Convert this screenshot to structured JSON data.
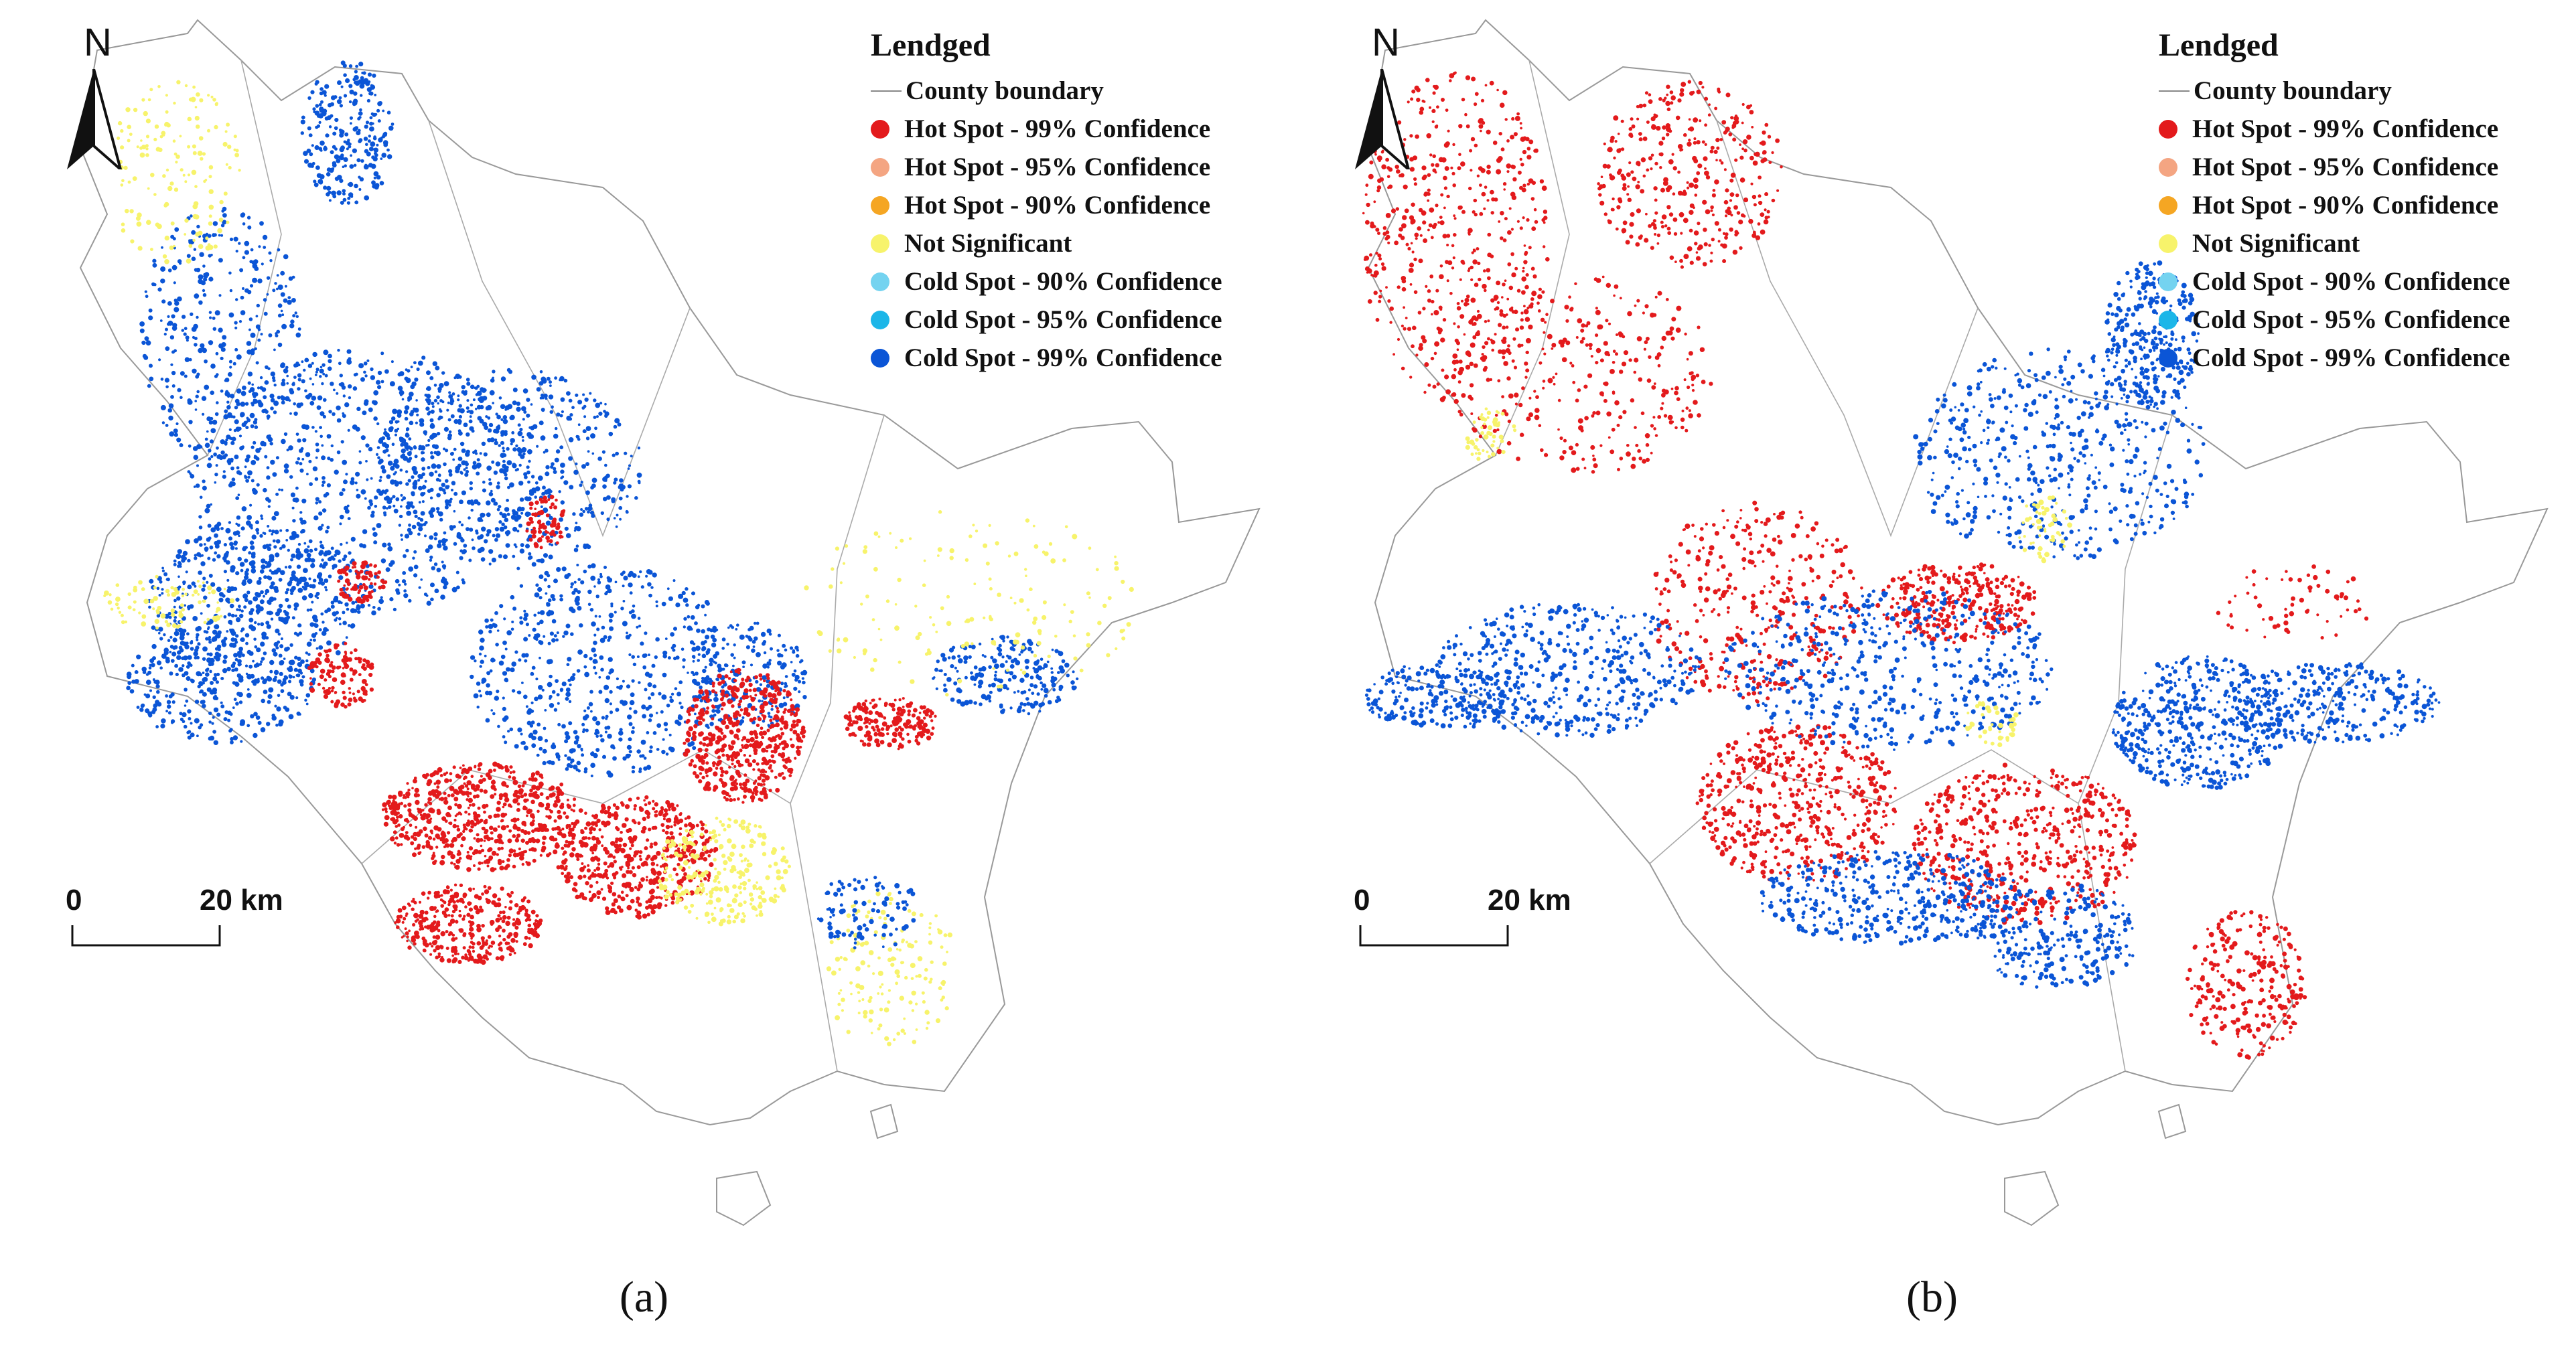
{
  "legend": {
    "title": "Lendged",
    "boundary_label": "County boundary",
    "classes": [
      {
        "label": "Hot Spot - 99% Confidence",
        "color": "#e31a1c"
      },
      {
        "label": "Hot Spot - 95% Confidence",
        "color": "#f4a582"
      },
      {
        "label": "Hot Spot - 90% Confidence",
        "color": "#f5a623"
      },
      {
        "label": "Not Significant",
        "color": "#f7f36b"
      },
      {
        "label": "Cold Spot - 90% Confidence",
        "color": "#74d3f0"
      },
      {
        "label": "Cold Spot - 95% Confidence",
        "color": "#1cb6e8"
      },
      {
        "label": "Cold Spot - 99% Confidence",
        "color": "#0b55d6"
      }
    ]
  },
  "north_arrow": {
    "label": "N"
  },
  "scale_bar": {
    "start_label": "0",
    "end_label": "20 km"
  },
  "panels": [
    {
      "caption": "(a)"
    },
    {
      "caption": "(b)"
    }
  ]
}
